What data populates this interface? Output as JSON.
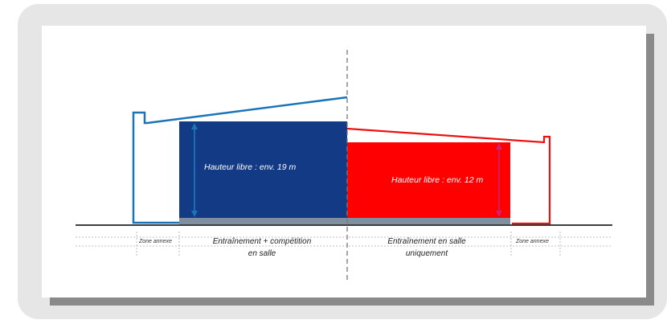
{
  "diagram": {
    "left_hall": {
      "height_label": "Hauteur libre : env. 19 m",
      "zone_label_line1": "Entraînement + compétition",
      "zone_label_line2": "en salle",
      "fill_color": "#123a85",
      "outline_color": "#1a74b8"
    },
    "right_hall": {
      "height_label": "Hauteur libre : env. 12 m",
      "zone_label_line1": "Entraînement en salle",
      "zone_label_line2": "uniquement",
      "fill_color": "#ff0000",
      "outline_color": "#ee1111"
    },
    "annex_left_label": "Zone annexe",
    "annex_right_label": "Zone annexe",
    "floor_color": "#7f8f9f"
  }
}
